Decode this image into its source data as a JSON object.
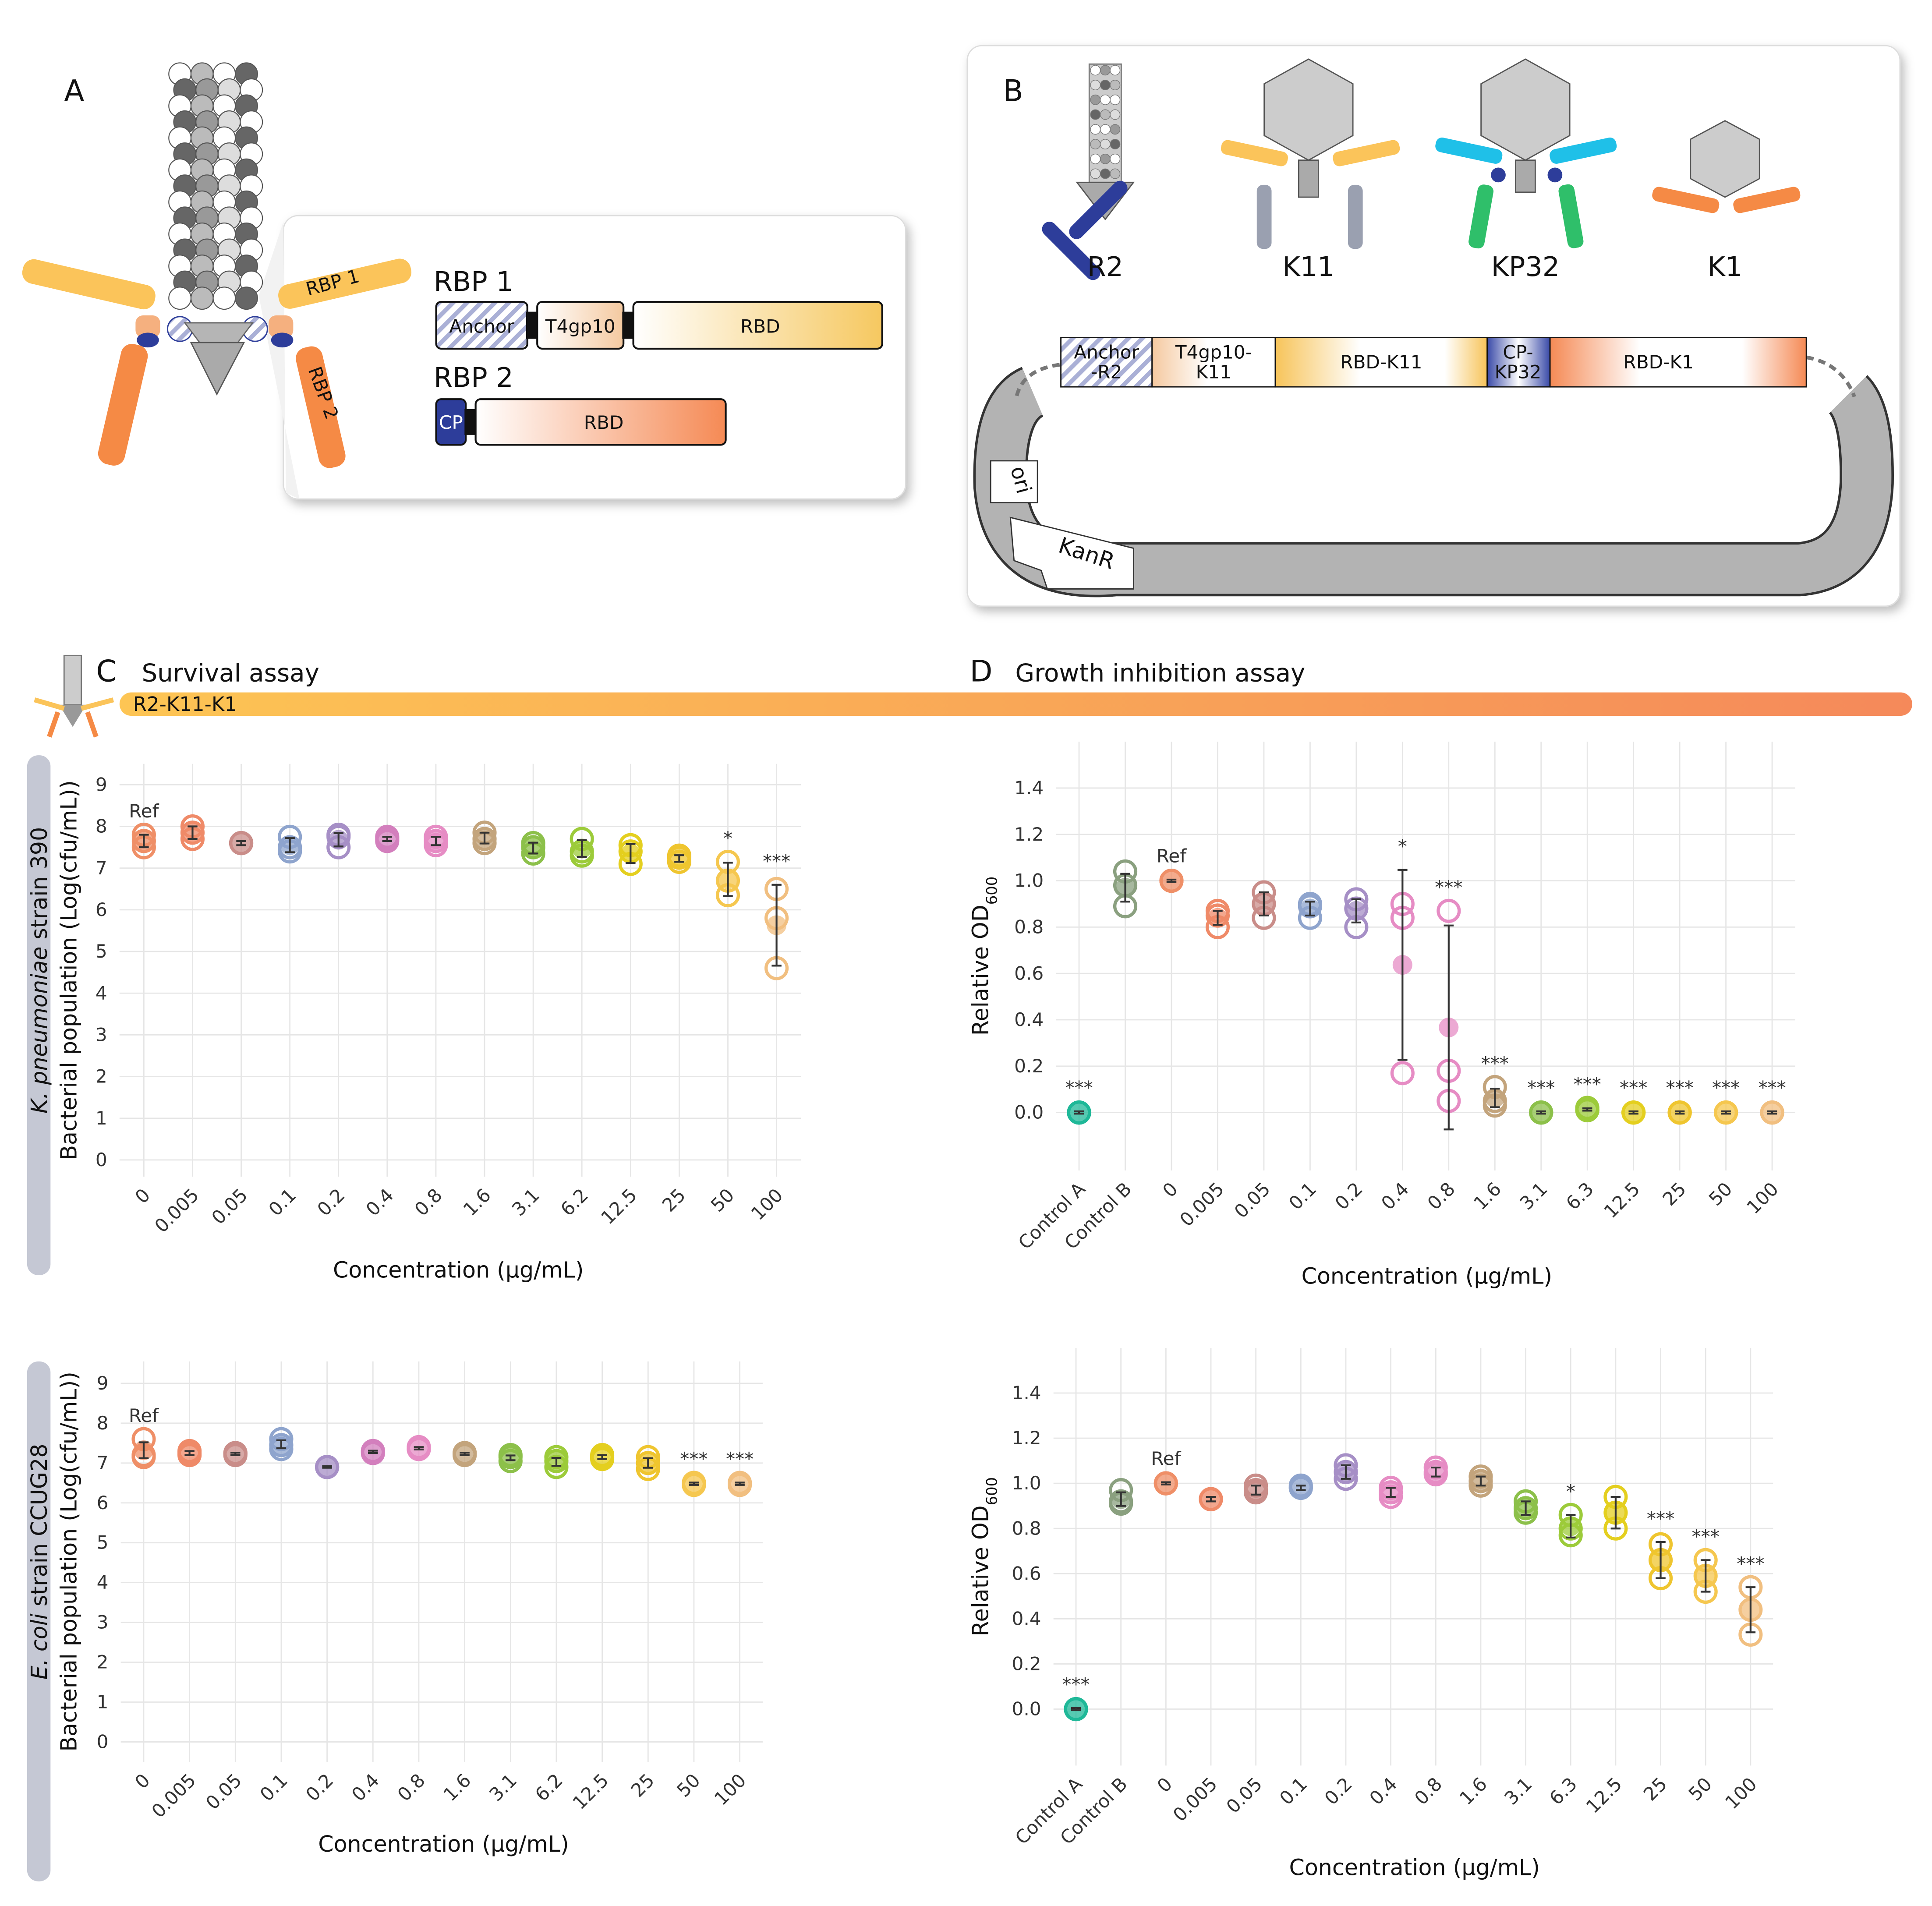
{
  "panel_a": {
    "label": "A",
    "rbp1_tag": "RBP 1",
    "rbp2_tag": "RBP 2",
    "rbp1_title": "RBP 1",
    "rbp2_title": "RBP 2",
    "rbp1_domains": [
      "Anchor",
      "T4gp10",
      "RBD"
    ],
    "rbp2_domains": [
      "CP",
      "RBD"
    ]
  },
  "panel_b": {
    "label": "B",
    "phages": [
      "R2",
      "K11",
      "KP32",
      "K1"
    ],
    "construct": [
      [
        "Anchor",
        "-R2"
      ],
      [
        "T4gp10-",
        "K11"
      ],
      [
        "RBD-K11"
      ],
      [
        "CP-",
        "KP32"
      ],
      [
        "RBD-K1"
      ]
    ],
    "ori": "ori",
    "marker": "KanR"
  },
  "panel_c": {
    "label": "C",
    "title": "Survival assay"
  },
  "panel_d": {
    "label": "D",
    "title": "Growth inhibition assay"
  },
  "construct_name": "R2-K11-K1",
  "chart_data": [
    {
      "type": "dotplot",
      "strain": {
        "italic": "K. pneumoniae",
        "rest": " strain 390"
      },
      "y_label": "Bacterial population (Log(cfu/mL))",
      "x_label": "Concentration (µg/mL)",
      "categories": [
        "0",
        "0.005",
        "0.05",
        "0.1",
        "0.2",
        "0.4",
        "0.8",
        "1.6",
        "3.1",
        "6.2",
        "12.5",
        "25",
        "50",
        "100"
      ],
      "values": [
        7.65,
        7.85,
        7.6,
        7.55,
        7.68,
        7.7,
        7.65,
        7.72,
        7.48,
        7.47,
        7.35,
        7.23,
        6.73,
        5.63
      ],
      "errors": [
        0.15,
        0.15,
        0.05,
        0.17,
        0.16,
        0.05,
        0.1,
        0.13,
        0.13,
        0.2,
        0.23,
        0.08,
        0.4,
        0.97
      ],
      "replicates": [
        [
          7.8,
          7.5,
          7.65
        ],
        [
          8.0,
          7.7,
          7.85
        ],
        [
          7.6,
          7.6,
          7.6
        ],
        [
          7.75,
          7.4,
          7.5
        ],
        [
          7.8,
          7.5,
          7.75
        ],
        [
          7.75,
          7.65,
          7.7
        ],
        [
          7.75,
          7.55,
          7.65
        ],
        [
          7.85,
          7.6,
          7.7
        ],
        [
          7.6,
          7.35,
          7.5
        ],
        [
          7.7,
          7.3,
          7.4
        ],
        [
          7.55,
          7.1,
          7.4
        ],
        [
          7.3,
          7.15,
          7.25
        ],
        [
          7.15,
          6.35,
          6.7
        ],
        [
          6.5,
          4.6,
          5.8
        ]
      ],
      "colors": [
        "#ef8f67",
        "#ef8a68",
        "#c98d89",
        "#8ea4cd",
        "#a68fc6",
        "#d37fbd",
        "#e68cc4",
        "#c3a47c",
        "#8cc04a",
        "#9ccb3a",
        "#e4cf1f",
        "#efc52f",
        "#f5c74f",
        "#f1bf80"
      ],
      "significance": [
        "Ref",
        null,
        null,
        null,
        null,
        null,
        null,
        null,
        null,
        null,
        null,
        null,
        "*",
        "***"
      ],
      "ylim": [
        -0.4,
        9.5
      ],
      "yticks": [
        0,
        1,
        2,
        3,
        4,
        5,
        6,
        7,
        8,
        9
      ],
      "grid": true
    },
    {
      "type": "dotplot",
      "strain": {
        "italic": "E. coli",
        "rest": " strain CCUG28"
      },
      "y_label": "Bacterial population (Log(cfu/mL))",
      "x_label": "Concentration (µg/mL)",
      "categories": [
        "0",
        "0.005",
        "0.05",
        "0.1",
        "0.2",
        "0.4",
        "0.8",
        "1.6",
        "3.1",
        "6.2",
        "12.5",
        "25",
        "50",
        "100"
      ],
      "values": [
        7.32,
        7.25,
        7.23,
        7.47,
        6.9,
        7.28,
        7.37,
        7.23,
        7.13,
        7.03,
        7.15,
        7.0,
        6.48,
        6.48
      ],
      "errors": [
        0.2,
        0.05,
        0.03,
        0.1,
        0.02,
        0.03,
        0.03,
        0.03,
        0.06,
        0.1,
        0.05,
        0.12,
        0.03,
        0.03
      ],
      "replicates": [
        [
          7.6,
          7.15,
          7.2
        ],
        [
          7.3,
          7.2,
          7.25
        ],
        [
          7.25,
          7.25,
          7.2
        ],
        [
          7.6,
          7.35,
          7.45
        ],
        [
          6.9,
          6.9,
          6.9
        ],
        [
          7.3,
          7.25,
          7.3
        ],
        [
          7.4,
          7.35,
          7.35
        ],
        [
          7.25,
          7.2,
          7.25
        ],
        [
          7.2,
          7.05,
          7.15
        ],
        [
          7.15,
          6.9,
          7.05
        ],
        [
          7.2,
          7.1,
          7.15
        ],
        [
          7.15,
          6.85,
          7.0
        ],
        [
          6.5,
          6.45,
          6.5
        ],
        [
          6.45,
          6.5,
          6.5
        ]
      ],
      "colors": [
        "#ef8f67",
        "#ef8a68",
        "#c98d89",
        "#8ea4cd",
        "#a68fc6",
        "#d37fbd",
        "#e68cc4",
        "#c3a47c",
        "#8cc04a",
        "#9ccb3a",
        "#e4cf1f",
        "#efc52f",
        "#f5c74f",
        "#f1bf80"
      ],
      "significance": [
        "Ref",
        null,
        null,
        null,
        null,
        null,
        null,
        null,
        null,
        null,
        null,
        null,
        "***",
        "***"
      ],
      "ylim": [
        -0.5,
        9.55
      ],
      "yticks": [
        0,
        1,
        2,
        3,
        4,
        5,
        6,
        7,
        8,
        9
      ],
      "grid": true
    },
    {
      "type": "dotplot",
      "y_label": "Relative OD",
      "y_label_sub": "600",
      "x_label": "Concentration (µg/mL)",
      "categories": [
        "Control A",
        "Control B",
        "0",
        "0.005",
        "0.05",
        "0.1",
        "0.2",
        "0.4",
        "0.8",
        "1.6",
        "3.1",
        "6.3",
        "12.5",
        "25",
        "50",
        "100"
      ],
      "values": [
        0,
        0.97,
        1,
        0.84,
        0.9,
        0.88,
        0.87,
        0.637,
        0.367,
        0.063,
        0,
        0.013,
        0,
        0,
        0,
        0
      ],
      "errors": [
        0.005,
        0.06,
        0.005,
        0.03,
        0.05,
        0.03,
        0.05,
        0.41,
        0.44,
        0.04,
        0.005,
        0.005,
        0.005,
        0.005,
        0.005,
        0.005
      ],
      "replicates": [
        [
          0,
          0,
          0
        ],
        [
          1.04,
          0.89,
          0.98
        ],
        [
          1,
          1,
          1
        ],
        [
          0.87,
          0.8,
          0.85
        ],
        [
          0.95,
          0.84,
          0.9
        ],
        [
          0.9,
          0.84,
          0.89
        ],
        [
          0.92,
          0.8,
          0.88
        ],
        [
          0.9,
          0.17,
          0.84
        ],
        [
          0.87,
          0.05,
          0.18
        ],
        [
          0.11,
          0.03,
          0.05
        ],
        [
          0,
          0,
          0
        ],
        [
          0.02,
          0.01,
          0.01
        ],
        [
          0,
          0,
          0
        ],
        [
          0,
          0,
          0
        ],
        [
          0,
          0,
          0
        ],
        [
          0,
          0,
          0
        ]
      ],
      "colors": [
        "#1fb898",
        "#8aa07f",
        "#ef8f67",
        "#ef8a68",
        "#c98d89",
        "#8ea4cd",
        "#a68fc6",
        "#e68cc4",
        "#e68cc4",
        "#c3a47c",
        "#8cc04a",
        "#9ccb3a",
        "#e4cf1f",
        "#efc52f",
        "#f5c74f",
        "#f1bf80"
      ],
      "significance": [
        "***",
        null,
        "Ref",
        null,
        null,
        null,
        null,
        "*",
        "***",
        "***",
        "***",
        "***",
        "***",
        "***",
        "***",
        "***"
      ],
      "ylim": [
        -0.25,
        1.6
      ],
      "yticks": [
        {
          "value": 0,
          "label": "0.0"
        },
        0.2,
        0.4,
        0.6,
        0.8,
        {
          "value": 1,
          "label": "1.0"
        },
        1.2,
        1.4
      ],
      "grid": true
    },
    {
      "type": "dotplot",
      "y_label": "Relative OD",
      "y_label_sub": "600",
      "x_label": "Concentration (µg/mL)",
      "categories": [
        "Control A",
        "Control B",
        "0",
        "0.005",
        "0.05",
        "0.1",
        "0.2",
        "0.4",
        "0.8",
        "1.6",
        "3.1",
        "6.3",
        "12.5",
        "25",
        "50",
        "100"
      ],
      "values": [
        0,
        0.93,
        1,
        0.93,
        0.97,
        0.98,
        1.05,
        0.96,
        1.05,
        1.01,
        0.89,
        0.81,
        0.87,
        0.66,
        0.59,
        0.44
      ],
      "errors": [
        0.005,
        0.03,
        0.005,
        0.01,
        0.02,
        0.01,
        0.03,
        0.02,
        0.02,
        0.02,
        0.03,
        0.05,
        0.07,
        0.08,
        0.07,
        0.1
      ],
      "replicates": [
        [
          0,
          0,
          0
        ],
        [
          0.97,
          0.91,
          0.92
        ],
        [
          1,
          1,
          1
        ],
        [
          0.93,
          0.93,
          0.93
        ],
        [
          0.99,
          0.96,
          0.97
        ],
        [
          0.99,
          0.98,
          0.98
        ],
        [
          1.08,
          1.02,
          1.05
        ],
        [
          0.98,
          0.94,
          0.96
        ],
        [
          1.07,
          1.04,
          1.05
        ],
        [
          1.03,
          0.99,
          1.01
        ],
        [
          0.92,
          0.87,
          0.89
        ],
        [
          0.86,
          0.77,
          0.8
        ],
        [
          0.94,
          0.8,
          0.87
        ],
        [
          0.73,
          0.58,
          0.66
        ],
        [
          0.66,
          0.52,
          0.59
        ],
        [
          0.54,
          0.33,
          0.44
        ]
      ],
      "colors": [
        "#1fb898",
        "#8aa07f",
        "#ef8f67",
        "#ef8a68",
        "#c98d89",
        "#8ea4cd",
        "#a68fc6",
        "#e68cc4",
        "#e68cc4",
        "#c3a47c",
        "#8cc04a",
        "#9ccb3a",
        "#e4cf1f",
        "#efc52f",
        "#f5c74f",
        "#f1bf80"
      ],
      "significance": [
        "***",
        null,
        "Ref",
        null,
        null,
        null,
        null,
        null,
        null,
        null,
        null,
        "*",
        null,
        "***",
        "***",
        "***"
      ],
      "ylim": [
        -0.25,
        1.6
      ],
      "yticks": [
        {
          "value": 0,
          "label": "0.0"
        },
        0.2,
        0.4,
        0.6,
        0.8,
        {
          "value": 1,
          "label": "1.0"
        },
        1.2,
        1.4
      ],
      "grid": true
    }
  ]
}
